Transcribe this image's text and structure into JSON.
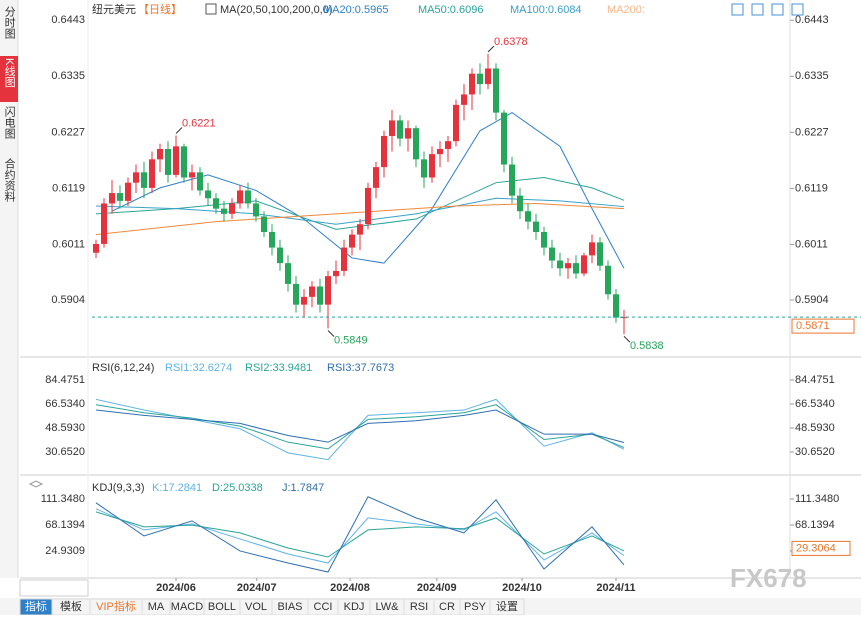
{
  "chart_data": {
    "type": "candlestick",
    "symbol": "纽元美元",
    "period": "【日线】",
    "ma_title": "MA(20,50,100,200,0,0)",
    "ylim": [
      0.5798,
      0.6482
    ],
    "yticks": [
      0.6443,
      0.6335,
      0.6227,
      0.6119,
      0.6011,
      0.5904
    ],
    "up_color": "#e5333d",
    "down_color": "#26a65b",
    "candles": [
      [
        0.5995,
        0.602,
        0.5985,
        0.6012
      ],
      [
        0.6012,
        0.61,
        0.6005,
        0.609
      ],
      [
        0.609,
        0.6135,
        0.607,
        0.611
      ],
      [
        0.611,
        0.6125,
        0.608,
        0.6095
      ],
      [
        0.6095,
        0.614,
        0.6085,
        0.613
      ],
      [
        0.613,
        0.6165,
        0.611,
        0.615
      ],
      [
        0.615,
        0.617,
        0.61,
        0.612
      ],
      [
        0.612,
        0.619,
        0.611,
        0.6175
      ],
      [
        0.6175,
        0.6205,
        0.615,
        0.6195
      ],
      [
        0.6195,
        0.621,
        0.613,
        0.6145
      ],
      [
        0.6145,
        0.6221,
        0.614,
        0.62
      ],
      [
        0.62,
        0.6205,
        0.613,
        0.614
      ],
      [
        0.614,
        0.6165,
        0.6115,
        0.615
      ],
      [
        0.615,
        0.616,
        0.6105,
        0.6115
      ],
      [
        0.6115,
        0.613,
        0.6085,
        0.61
      ],
      [
        0.61,
        0.611,
        0.607,
        0.608
      ],
      [
        0.608,
        0.6095,
        0.6055,
        0.607
      ],
      [
        0.607,
        0.61,
        0.606,
        0.609
      ],
      [
        0.609,
        0.6125,
        0.608,
        0.6115
      ],
      [
        0.6115,
        0.613,
        0.608,
        0.609
      ],
      [
        0.609,
        0.61,
        0.6055,
        0.6065
      ],
      [
        0.6065,
        0.6075,
        0.6025,
        0.6035
      ],
      [
        0.6035,
        0.605,
        0.599,
        0.6005
      ],
      [
        0.6005,
        0.602,
        0.596,
        0.5975
      ],
      [
        0.5975,
        0.599,
        0.592,
        0.5935
      ],
      [
        0.5935,
        0.595,
        0.588,
        0.5895
      ],
      [
        0.5895,
        0.5925,
        0.587,
        0.591
      ],
      [
        0.591,
        0.594,
        0.589,
        0.593
      ],
      [
        0.593,
        0.5945,
        0.588,
        0.5895
      ],
      [
        0.5895,
        0.596,
        0.5849,
        0.595
      ],
      [
        0.595,
        0.598,
        0.5935,
        0.596
      ],
      [
        0.596,
        0.602,
        0.595,
        0.6005
      ],
      [
        0.6005,
        0.604,
        0.599,
        0.603
      ],
      [
        0.603,
        0.606,
        0.6,
        0.605
      ],
      [
        0.605,
        0.613,
        0.604,
        0.612
      ],
      [
        0.612,
        0.617,
        0.61,
        0.616
      ],
      [
        0.616,
        0.623,
        0.614,
        0.622
      ],
      [
        0.622,
        0.627,
        0.619,
        0.625
      ],
      [
        0.625,
        0.626,
        0.62,
        0.6215
      ],
      [
        0.6215,
        0.625,
        0.619,
        0.6235
      ],
      [
        0.6235,
        0.624,
        0.616,
        0.6175
      ],
      [
        0.6175,
        0.619,
        0.612,
        0.614
      ],
      [
        0.614,
        0.62,
        0.613,
        0.6185
      ],
      [
        0.6185,
        0.621,
        0.616,
        0.6195
      ],
      [
        0.6195,
        0.622,
        0.617,
        0.621
      ],
      [
        0.621,
        0.629,
        0.62,
        0.628
      ],
      [
        0.628,
        0.632,
        0.625,
        0.63
      ],
      [
        0.63,
        0.635,
        0.627,
        0.634
      ],
      [
        0.634,
        0.636,
        0.63,
        0.632
      ],
      [
        0.632,
        0.6378,
        0.631,
        0.635
      ],
      [
        0.635,
        0.636,
        0.625,
        0.6265
      ],
      [
        0.6265,
        0.627,
        0.615,
        0.6165
      ],
      [
        0.6165,
        0.618,
        0.609,
        0.6105
      ],
      [
        0.6105,
        0.612,
        0.606,
        0.6075
      ],
      [
        0.6075,
        0.609,
        0.604,
        0.6055
      ],
      [
        0.6055,
        0.607,
        0.602,
        0.6035
      ],
      [
        0.6035,
        0.6045,
        0.599,
        0.6005
      ],
      [
        0.6005,
        0.602,
        0.5965,
        0.598
      ],
      [
        0.598,
        0.5995,
        0.595,
        0.5965
      ],
      [
        0.5965,
        0.5985,
        0.5945,
        0.5975
      ],
      [
        0.5975,
        0.599,
        0.5945,
        0.5955
      ],
      [
        0.5955,
        0.5995,
        0.595,
        0.599
      ],
      [
        0.599,
        0.603,
        0.5975,
        0.6015
      ],
      [
        0.6015,
        0.6025,
        0.596,
        0.597
      ],
      [
        0.597,
        0.598,
        0.5905,
        0.5915
      ],
      [
        0.5915,
        0.5925,
        0.586,
        0.587
      ],
      [
        0.587,
        0.5885,
        0.5838,
        0.5871
      ]
    ],
    "high_low_marks": [
      {
        "candle": 10,
        "kind": "high"
      },
      {
        "candle": 49,
        "kind": "high"
      },
      {
        "candle": 29,
        "kind": "low"
      },
      {
        "candle": 66,
        "kind": "low"
      }
    ],
    "xticks": [
      {
        "value": 10,
        "label": "2024/06"
      },
      {
        "value": 20.1,
        "label": "2024/07"
      },
      {
        "value": 31.75,
        "label": "2024/08"
      },
      {
        "value": 42.6,
        "label": "2024/09"
      },
      {
        "value": 53.25,
        "label": "2024/10"
      },
      {
        "value": 65,
        "label": "2024/11"
      }
    ],
    "series": [
      {
        "name": "MA20",
        "legend": "MA20:0.5965",
        "color": "#2f7fc9",
        "x": [
          2,
          8,
          14,
          20,
          26,
          32,
          36,
          42,
          48,
          52,
          58,
          62,
          66
        ],
        "values": [
          0.6075,
          0.612,
          0.6145,
          0.6115,
          0.606,
          0.5985,
          0.5975,
          0.608,
          0.623,
          0.6265,
          0.62,
          0.608,
          0.5965
        ]
      },
      {
        "name": "MA50",
        "legend": "MA50:0.6096",
        "color": "#2aa59a",
        "x": [
          0,
          10,
          20,
          30,
          40,
          50,
          56,
          62,
          66
        ],
        "values": [
          0.607,
          0.608,
          0.6095,
          0.604,
          0.606,
          0.613,
          0.614,
          0.612,
          0.6096
        ]
      },
      {
        "name": "MA100",
        "legend": "MA100:0.6084",
        "color": "#3aa0c8",
        "x": [
          0,
          10,
          20,
          30,
          40,
          50,
          58,
          66
        ],
        "values": [
          0.6085,
          0.608,
          0.607,
          0.605,
          0.607,
          0.61,
          0.6095,
          0.6084
        ]
      },
      {
        "name": "MA200",
        "legend": "MA200:",
        "color": "#f0883a",
        "x": [
          0,
          15,
          30,
          45,
          55,
          66
        ],
        "values": [
          0.603,
          0.6055,
          0.607,
          0.6085,
          0.609,
          0.608
        ]
      }
    ],
    "indicators": [
      {
        "title": "RSI(6,12,24)",
        "ylim": [
          17.2,
          99.4
        ],
        "yticks": [
          84.4751,
          {
            "value": 66.534,
            "label": "66.5340"
          },
          {
            "value": 48.593,
            "label": "48.5930"
          },
          {
            "value": 30.652,
            "label": "30.6520"
          }
        ],
        "series": [
          {
            "name": "RSI1",
            "legend": "RSI1:32.6274",
            "color": "#5fb3e6",
            "x": [
              0,
              6,
              12,
              18,
              24,
              29,
              34,
              40,
              46,
              50,
              56,
              62,
              66
            ],
            "values": [
              70,
              62,
              55,
              48,
              30,
              25,
              58,
              60,
              62,
              70,
              35,
              45,
              32.6274
            ]
          },
          {
            "name": "RSI2",
            "legend": "RSI2:33.9481",
            "color": "#2aa59a",
            "x": [
              0,
              6,
              12,
              18,
              24,
              29,
              34,
              40,
              46,
              50,
              56,
              62,
              66
            ],
            "values": [
              66,
              60,
              56,
              50,
              38,
              33,
              55,
              57,
              60,
              66,
              40,
              44,
              33.9481
            ]
          },
          {
            "name": "RSI3",
            "legend": "RSI3:37.7673",
            "color": "#2f6fb0",
            "x": [
              0,
              6,
              12,
              18,
              24,
              29,
              34,
              40,
              46,
              50,
              56,
              62,
              66
            ],
            "values": [
              62,
              58,
              55,
              52,
              43,
              38,
              52,
              54,
              58,
              62,
              44,
              44,
              37.7673
            ]
          }
        ]
      },
      {
        "title": "KDJ(9,3,3)",
        "ylim": [
          -19.9,
          142.9
        ],
        "yticks": [
          {
            "value": 111.348,
            "label": "111.3480"
          },
          68.1394,
          24.9309
        ],
        "current_value": 29.3064,
        "series": [
          {
            "name": "K",
            "legend": "K:17.2841",
            "color": "#5fb3e6",
            "x": [
              0,
              6,
              12,
              18,
              24,
              29,
              34,
              40,
              46,
              50,
              56,
              62,
              66
            ],
            "values": [
              95,
              60,
              70,
              45,
              20,
              5,
              80,
              70,
              60,
              90,
              10,
              55,
              17.2841
            ]
          },
          {
            "name": "D",
            "legend": "D:25.0338",
            "color": "#2aa59a",
            "x": [
              0,
              6,
              12,
              18,
              24,
              29,
              34,
              40,
              46,
              50,
              56,
              62,
              66
            ],
            "values": [
              90,
              65,
              68,
              55,
              30,
              15,
              60,
              65,
              62,
              80,
              20,
              50,
              25.0338
            ]
          },
          {
            "name": "J",
            "legend": "J:1.7847",
            "color": "#2f6fb0",
            "x": [
              0,
              6,
              12,
              18,
              24,
              29,
              34,
              40,
              46,
              50,
              56,
              62,
              66
            ],
            "values": [
              105,
              50,
              75,
              25,
              5,
              -10,
              115,
              80,
              55,
              110,
              -5,
              65,
              1.7847
            ]
          }
        ]
      }
    ]
  },
  "sidebar": [
    "分时图",
    "K线图",
    "闪电图",
    "合约资料"
  ],
  "period_selector": "日线",
  "toolbar": [
    "指标",
    "模板",
    "VIP指标",
    "MA",
    "MACD",
    "BOLL",
    "VOL",
    "BIAS",
    "CCI",
    "KDJ",
    "LW&",
    "RSI",
    "CR",
    "PSY",
    "设置"
  ],
  "watermark": "FX678"
}
